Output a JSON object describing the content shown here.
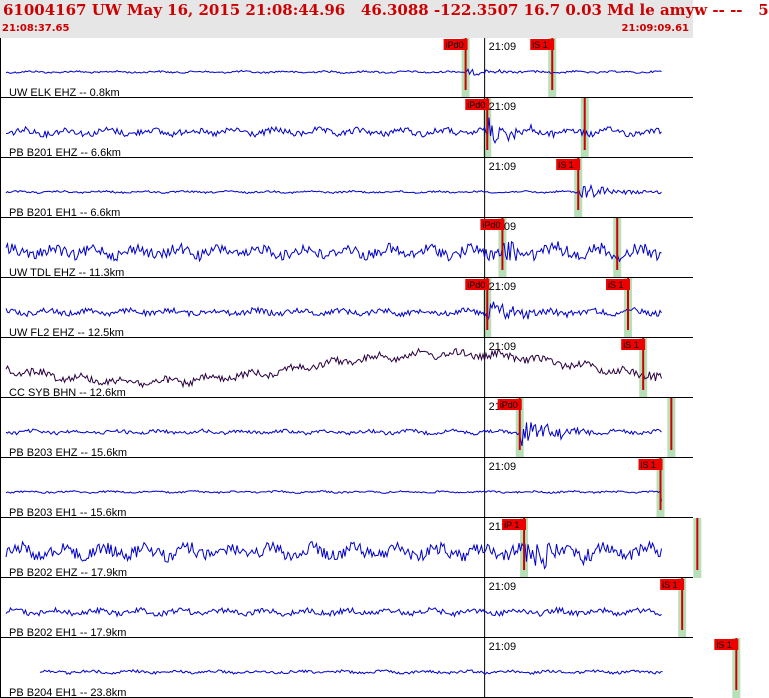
{
  "header": {
    "title": "61004167 UW May 16, 2015 21:08:44.96   46.3088 -122.3507 16.7 0.03 Md le amyw -- --   5",
    "time_start": "21:08:37.65",
    "time_end": "21:09:09.61"
  },
  "colors": {
    "header_bg": "#e6e6e6",
    "header_text": "#cc0000",
    "trace": "#0000cc",
    "trace_alt": "#2a0040",
    "pick_label_bg": "#ee0000",
    "pick_line": "#cc0000",
    "pick_band": "#b8e0b8",
    "divider": "#000000"
  },
  "minute_label": "21:09",
  "traces": [
    {
      "label": "UW ELK EHZ -- 0.8km",
      "color": "trace",
      "amp": 3,
      "noise": 2,
      "picks": [
        {
          "label": "iPd0",
          "t": 21.5
        },
        {
          "label": "iS 1",
          "t": 25.5
        }
      ]
    },
    {
      "label": "PB B201 EHZ -- 6.6km",
      "color": "trace",
      "amp": 10,
      "noise": 7,
      "picks": [
        {
          "label": "iPd0",
          "t": 22.5
        },
        {
          "label": "",
          "t": 27.0
        }
      ]
    },
    {
      "label": "PB B201 EH1 -- 6.6km",
      "color": "trace",
      "amp": 8,
      "noise": 2,
      "picks": [
        {
          "label": "iS 1",
          "t": 26.7
        }
      ]
    },
    {
      "label": "UW TDL EHZ -- 11.3km",
      "color": "trace",
      "amp": 14,
      "noise": 12,
      "picks": [
        {
          "label": "iPd0",
          "t": 23.2
        },
        {
          "label": "",
          "t": 28.5
        }
      ]
    },
    {
      "label": "UW FL2 EHZ -- 12.5km",
      "color": "trace",
      "amp": 12,
      "noise": 6,
      "picks": [
        {
          "label": "iPd0",
          "t": 22.5
        },
        {
          "label": "iS 1",
          "t": 29.0
        }
      ]
    },
    {
      "label": "CC SYB BHN -- 12.6km",
      "color": "trace_alt",
      "amp": 6,
      "noise": 8,
      "picks": [
        {
          "label": "iS 1",
          "t": 29.7
        }
      ]
    },
    {
      "label": "PB B203 EHZ -- 15.6km",
      "color": "trace",
      "amp": 14,
      "noise": 4,
      "picks": [
        {
          "label": "iPd0",
          "t": 24.0
        },
        {
          "label": "",
          "t": 31.0
        }
      ]
    },
    {
      "label": "PB B203 EH1 -- 15.6km",
      "color": "trace",
      "amp": 12,
      "noise": 2,
      "picks": [
        {
          "label": "iS 1",
          "t": 30.5
        }
      ]
    },
    {
      "label": "PB B202 EHZ -- 17.9km",
      "color": "trace",
      "amp": 16,
      "noise": 14,
      "picks": [
        {
          "label": "iP 1",
          "t": 24.2
        },
        {
          "label": "",
          "t": 32.2
        }
      ]
    },
    {
      "label": "PB B202 EH1 -- 17.9km",
      "color": "trace",
      "amp": 14,
      "noise": 6,
      "picks": [
        {
          "label": "iS 1",
          "t": 31.5
        }
      ]
    },
    {
      "label": "PB B204 EH1 -- 23.8km",
      "color": "trace",
      "amp": 14,
      "noise": 3,
      "picks": [
        {
          "label": "iS 1",
          "t": 34.0
        }
      ]
    }
  ]
}
